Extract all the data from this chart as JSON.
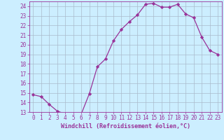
{
  "x": [
    0,
    1,
    2,
    3,
    4,
    5,
    6,
    7,
    8,
    9,
    10,
    11,
    12,
    13,
    14,
    15,
    16,
    17,
    18,
    19,
    20,
    21,
    22,
    23
  ],
  "y": [
    14.8,
    14.6,
    13.8,
    13.1,
    12.8,
    12.8,
    12.8,
    14.9,
    17.7,
    18.5,
    20.4,
    21.6,
    22.4,
    23.1,
    24.2,
    24.3,
    23.9,
    23.9,
    24.2,
    23.2,
    22.8,
    20.8,
    19.4,
    19.0
  ],
  "line_color": "#993399",
  "marker": "D",
  "marker_size": 2.2,
  "bg_color": "#cceeff",
  "grid_color": "#aabbcc",
  "xlabel": "Windchill (Refroidissement éolien,°C)",
  "xlabel_color": "#993399",
  "tick_color": "#993399",
  "ylim": [
    13,
    24.5
  ],
  "yticks": [
    13,
    14,
    15,
    16,
    17,
    18,
    19,
    20,
    21,
    22,
    23,
    24
  ],
  "xlim": [
    -0.5,
    23.5
  ],
  "xticks": [
    0,
    1,
    2,
    3,
    4,
    5,
    6,
    7,
    8,
    9,
    10,
    11,
    12,
    13,
    14,
    15,
    16,
    17,
    18,
    19,
    20,
    21,
    22,
    23
  ],
  "tick_fontsize": 5.5,
  "xlabel_fontsize": 6.0
}
